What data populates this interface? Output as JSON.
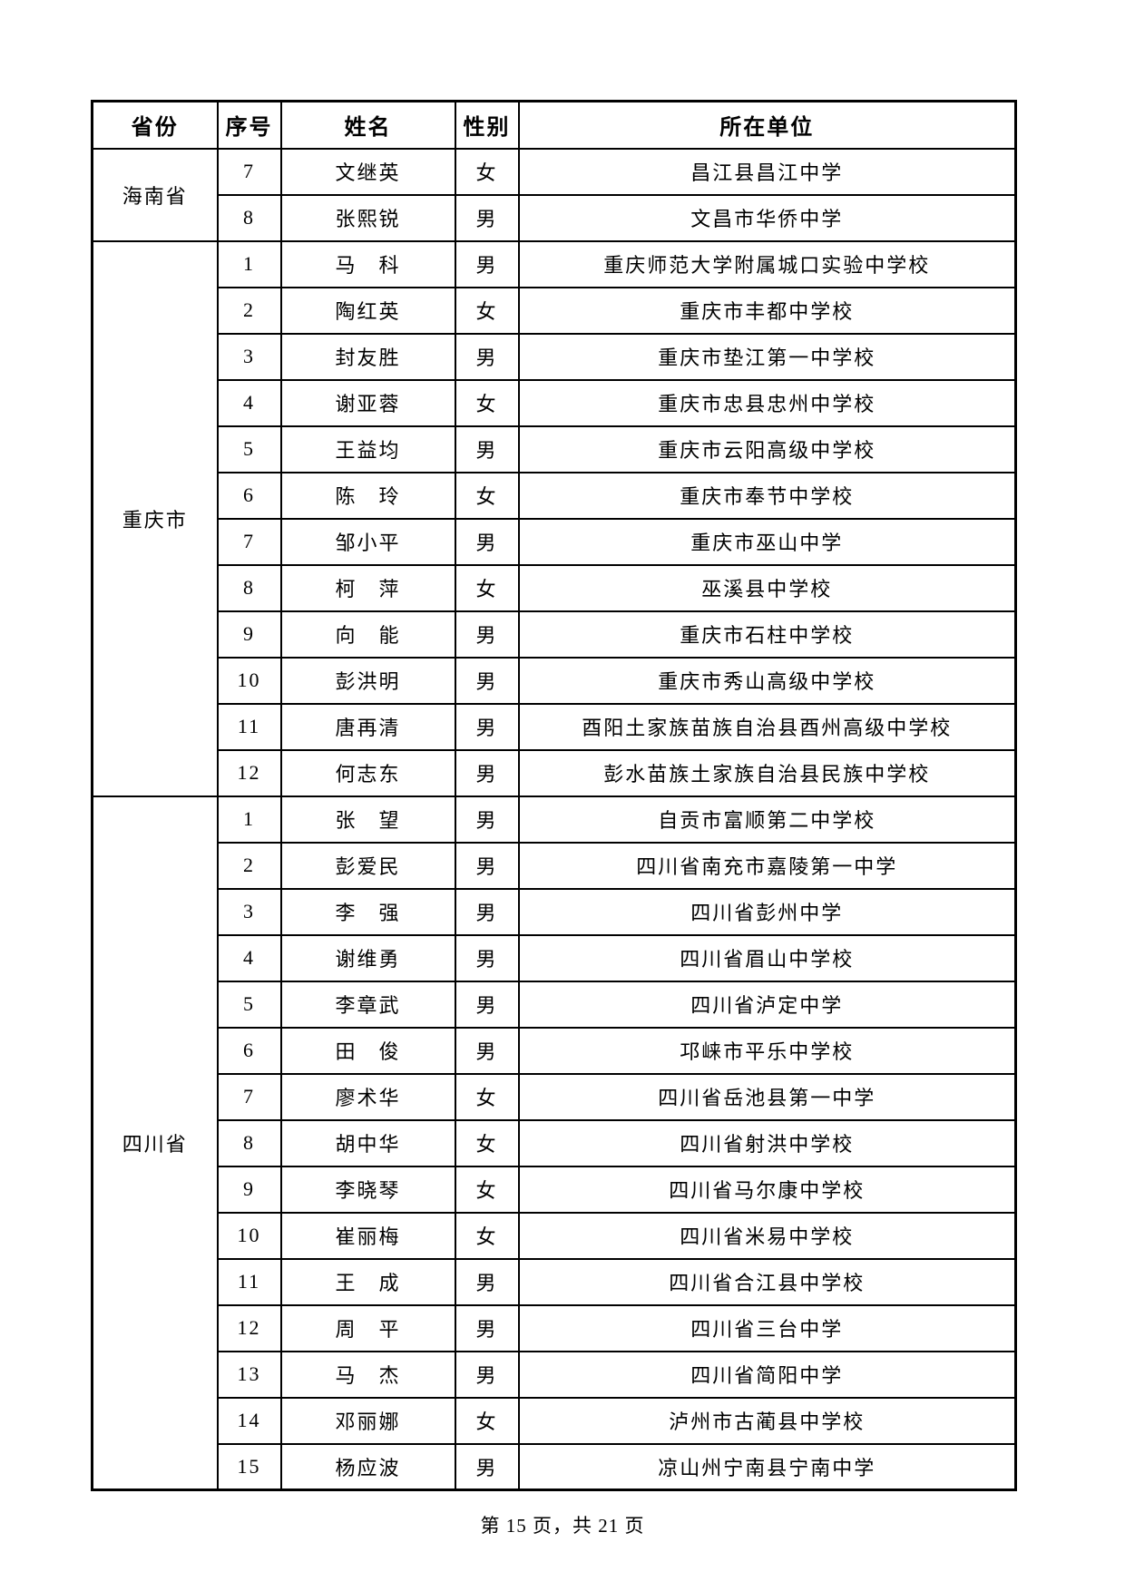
{
  "table": {
    "columns": [
      "省份",
      "序号",
      "姓名",
      "性别",
      "所在单位"
    ],
    "groups": [
      {
        "province": "海南省",
        "rows": [
          {
            "no": "7",
            "name": "文继英",
            "gender": "女",
            "unit": "昌江县昌江中学"
          },
          {
            "no": "8",
            "name": "张熙锐",
            "gender": "男",
            "unit": "文昌市华侨中学"
          }
        ]
      },
      {
        "province": "重庆市",
        "rows": [
          {
            "no": "1",
            "name": "马　科",
            "gender": "男",
            "unit": "重庆师范大学附属城口实验中学校"
          },
          {
            "no": "2",
            "name": "陶红英",
            "gender": "女",
            "unit": "重庆市丰都中学校"
          },
          {
            "no": "3",
            "name": "封友胜",
            "gender": "男",
            "unit": "重庆市垫江第一中学校"
          },
          {
            "no": "4",
            "name": "谢亚蓉",
            "gender": "女",
            "unit": "重庆市忠县忠州中学校"
          },
          {
            "no": "5",
            "name": "王益均",
            "gender": "男",
            "unit": "重庆市云阳高级中学校"
          },
          {
            "no": "6",
            "name": "陈　玲",
            "gender": "女",
            "unit": "重庆市奉节中学校"
          },
          {
            "no": "7",
            "name": "邹小平",
            "gender": "男",
            "unit": "重庆市巫山中学"
          },
          {
            "no": "8",
            "name": "柯　萍",
            "gender": "女",
            "unit": "巫溪县中学校"
          },
          {
            "no": "9",
            "name": "向　能",
            "gender": "男",
            "unit": "重庆市石柱中学校"
          },
          {
            "no": "10",
            "name": "彭洪明",
            "gender": "男",
            "unit": "重庆市秀山高级中学校"
          },
          {
            "no": "11",
            "name": "唐再清",
            "gender": "男",
            "unit": "酉阳土家族苗族自治县酉州高级中学校"
          },
          {
            "no": "12",
            "name": "何志东",
            "gender": "男",
            "unit": "彭水苗族土家族自治县民族中学校"
          }
        ]
      },
      {
        "province": "四川省",
        "rows": [
          {
            "no": "1",
            "name": "张　望",
            "gender": "男",
            "unit": "自贡市富顺第二中学校"
          },
          {
            "no": "2",
            "name": "彭爱民",
            "gender": "男",
            "unit": "四川省南充市嘉陵第一中学"
          },
          {
            "no": "3",
            "name": "李　强",
            "gender": "男",
            "unit": "四川省彭州中学"
          },
          {
            "no": "4",
            "name": "谢维勇",
            "gender": "男",
            "unit": "四川省眉山中学校"
          },
          {
            "no": "5",
            "name": "李章武",
            "gender": "男",
            "unit": "四川省泸定中学"
          },
          {
            "no": "6",
            "name": "田　俊",
            "gender": "男",
            "unit": "邛崃市平乐中学校"
          },
          {
            "no": "7",
            "name": "廖术华",
            "gender": "女",
            "unit": "四川省岳池县第一中学"
          },
          {
            "no": "8",
            "name": "胡中华",
            "gender": "女",
            "unit": "四川省射洪中学校"
          },
          {
            "no": "9",
            "name": "李晓琴",
            "gender": "女",
            "unit": "四川省马尔康中学校"
          },
          {
            "no": "10",
            "name": "崔丽梅",
            "gender": "女",
            "unit": "四川省米易中学校"
          },
          {
            "no": "11",
            "name": "王　成",
            "gender": "男",
            "unit": "四川省合江县中学校"
          },
          {
            "no": "12",
            "name": "周　平",
            "gender": "男",
            "unit": "四川省三台中学"
          },
          {
            "no": "13",
            "name": "马　杰",
            "gender": "男",
            "unit": "四川省简阳中学"
          },
          {
            "no": "14",
            "name": "邓丽娜",
            "gender": "女",
            "unit": "泸州市古蔺县中学校"
          },
          {
            "no": "15",
            "name": "杨应波",
            "gender": "男",
            "unit": "凉山州宁南县宁南中学"
          }
        ]
      }
    ]
  },
  "footer": {
    "page_label": "第 15 页，共 21 页"
  }
}
